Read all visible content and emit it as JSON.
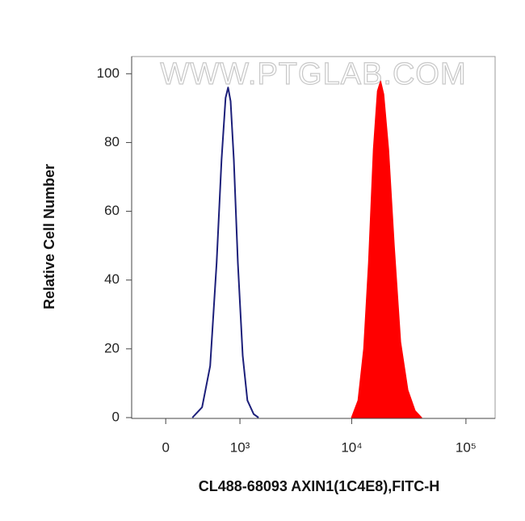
{
  "chart_data": {
    "type": "histogram-overlay",
    "watermark": "WWW.PTGLAB.COM",
    "x_label": "CL488-68093 AXIN1(1C4E8),FITC-H",
    "y_label": "Relative Cell Number",
    "xscale": "biexponential",
    "xlim": [
      -350,
      180000
    ],
    "xticks": [
      0,
      {
        "value": 1000,
        "label": "10³"
      },
      {
        "value": 10000,
        "label": "10⁴"
      },
      {
        "value": 100000,
        "label": "10⁵"
      }
    ],
    "ylim": [
      0,
      105
    ],
    "yticks": [
      0,
      20,
      40,
      60,
      80,
      100
    ],
    "series": [
      {
        "style": "outline",
        "color": "#1c1f7a",
        "x": [
          266,
          378,
          481,
          573,
          650,
          718,
          762,
          808,
          871,
          955,
          1063,
          1179,
          1349,
          1495
        ],
        "values": [
          0,
          3,
          15,
          45,
          75,
          93,
          96,
          92,
          75,
          45,
          18,
          5,
          1,
          0
        ]
      },
      {
        "style": "filled",
        "color": "#ff0000",
        "x": [
          9950,
          11350,
          12720,
          14020,
          15460,
          16780,
          17910,
          19110,
          21060,
          23600,
          26870,
          31110,
          36010,
          41020
        ],
        "values": [
          0,
          5,
          20,
          45,
          78,
          95,
          98,
          94,
          78,
          50,
          22,
          8,
          2,
          0
        ]
      }
    ]
  }
}
